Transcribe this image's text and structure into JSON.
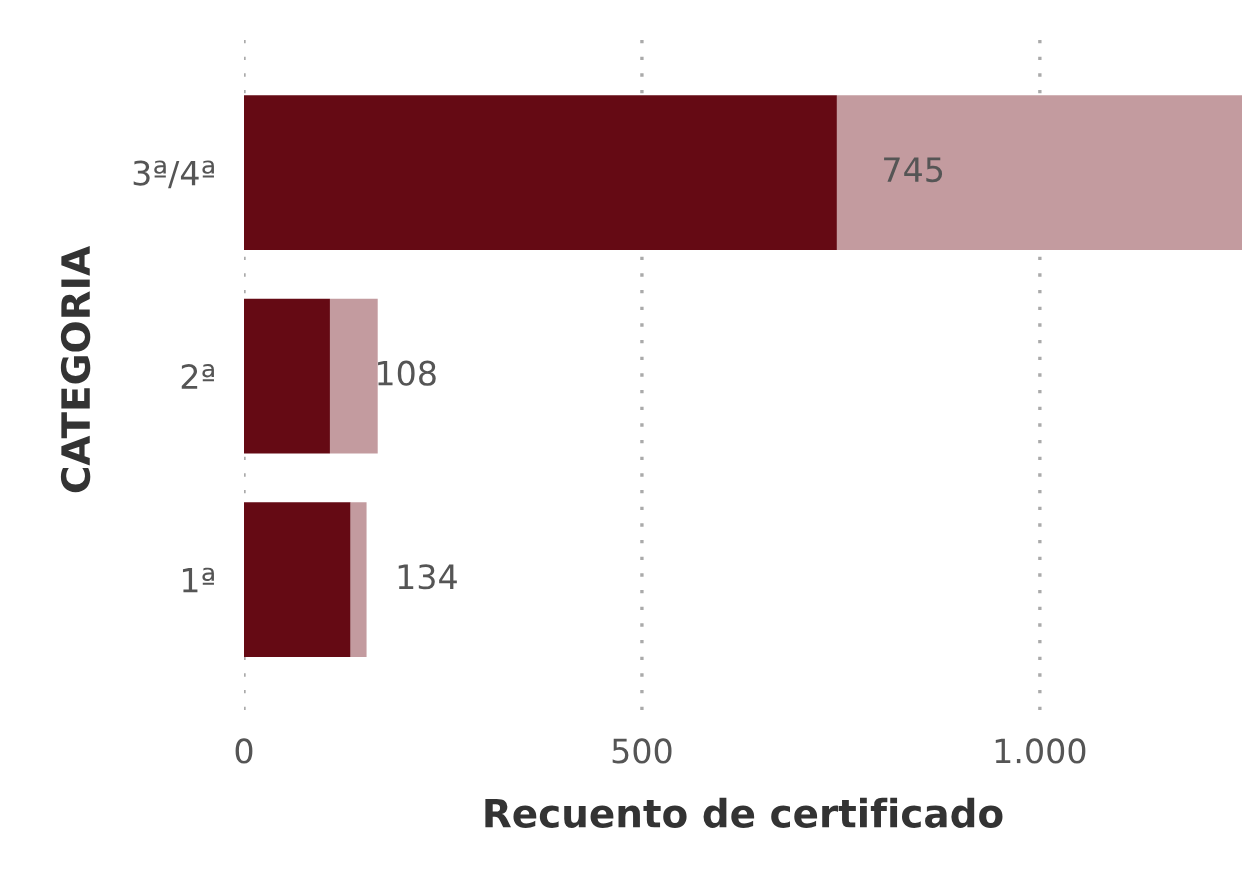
{
  "chart_data": {
    "type": "bar",
    "orientation": "horizontal",
    "stacked": true,
    "xlabel": "Recuento de certificado",
    "ylabel": "CATEGORIA",
    "categories": [
      "3ª/4ª",
      "2ª",
      "1ª"
    ],
    "series": [
      {
        "color": "#650a14",
        "values": [
          745,
          108,
          134
        ],
        "value_labels": [
          "745",
          "108",
          "134"
        ]
      },
      {
        "color": "#c39b9f",
        "values": [
          509,
          60,
          20
        ]
      }
    ],
    "xlim": [
      0,
      1254
    ],
    "xticks": [
      0,
      500,
      {
        "value": 1000,
        "label": "1.000"
      }
    ],
    "grid": "x"
  }
}
